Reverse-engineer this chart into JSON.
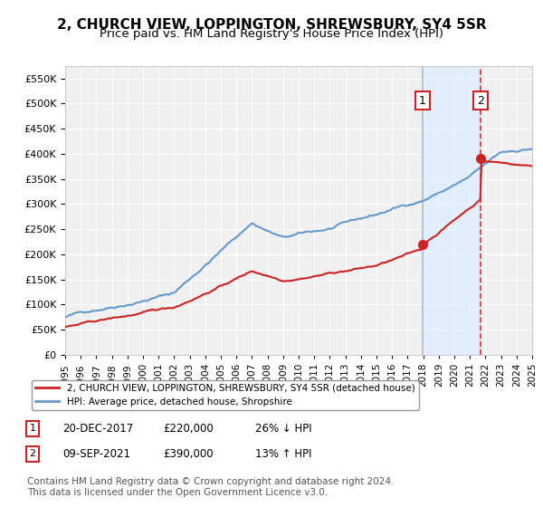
{
  "title": "2, CHURCH VIEW, LOPPINGTON, SHREWSBURY, SY4 5SR",
  "subtitle": "Price paid vs. HM Land Registry's House Price Index (HPI)",
  "title_fontsize": 11,
  "subtitle_fontsize": 9.5,
  "ylabel_ticks": [
    "£0",
    "£50K",
    "£100K",
    "£150K",
    "£200K",
    "£250K",
    "£300K",
    "£350K",
    "£400K",
    "£450K",
    "£500K",
    "£550K"
  ],
  "ytick_values": [
    0,
    50000,
    100000,
    150000,
    200000,
    250000,
    300000,
    350000,
    400000,
    450000,
    500000,
    550000
  ],
  "ylim": [
    0,
    575000
  ],
  "x_start_year": 1995,
  "x_end_year": 2025,
  "background_color": "#ffffff",
  "plot_bg_color": "#f0f0f0",
  "grid_color": "#ffffff",
  "hpi_color": "#6699cc",
  "price_color": "#cc2222",
  "sale1_year": 2017.97,
  "sale1_price": 220000,
  "sale2_year": 2021.69,
  "sale2_price": 390000,
  "shade_color": "#ddeeff",
  "vline_color1": "#aabbdd",
  "vline_color2": "#cc3333",
  "legend_box_label1": "2, CHURCH VIEW, LOPPINGTON, SHREWSBURY, SY4 5SR (detached house)",
  "legend_box_label2": "HPI: Average price, detached house, Shropshire",
  "annotation1_label": "1",
  "annotation2_label": "2",
  "table_row1": [
    "1",
    "20-DEC-2017",
    "£220,000",
    "26% ↓ HPI"
  ],
  "table_row2": [
    "2",
    "09-SEP-2021",
    "£390,000",
    "13% ↑ HPI"
  ],
  "footer": "Contains HM Land Registry data © Crown copyright and database right 2024.\nThis data is licensed under the Open Government Licence v3.0.",
  "footer_fontsize": 7.5
}
